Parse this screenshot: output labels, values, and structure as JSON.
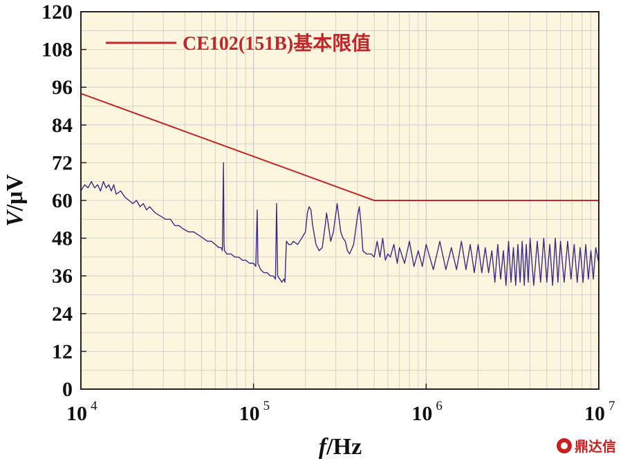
{
  "colors": {
    "plot_background": "#fbf6dd",
    "grid": "#c8c8c8",
    "limit_line": "#c0262a",
    "measured_line": "#3a2a86",
    "watermark": "#c81e1e"
  },
  "watermark": {
    "text": "鼎达信",
    "icon": "watermark-logo-icon"
  },
  "chart_data": {
    "type": "line",
    "title": "",
    "xlabel_italic": "f",
    "xlabel_unit": "/Hz",
    "ylabel_italic": "V",
    "ylabel_unit": "/μV",
    "xscale": "log",
    "xlim": [
      10000,
      10000000
    ],
    "ylim": [
      0,
      120
    ],
    "grid": true,
    "legend_placement": "top-left",
    "y_ticks": [
      "0",
      "12",
      "24",
      "36",
      "48",
      "60",
      "72",
      "84",
      "96",
      "108",
      "120"
    ],
    "x_ticks": [
      {
        "value": 10000,
        "base": "10",
        "exp": "4"
      },
      {
        "value": 100000,
        "base": "10",
        "exp": "5"
      },
      {
        "value": 1000000,
        "base": "10",
        "exp": "6"
      },
      {
        "value": 10000000,
        "base": "10",
        "exp": "7"
      }
    ],
    "series": [
      {
        "name": "CE102(151B)基本限值",
        "style": "limit",
        "points": [
          [
            10000,
            94
          ],
          [
            500000,
            60
          ],
          [
            10000000,
            60
          ]
        ]
      },
      {
        "style": "measured",
        "points": [
          [
            10000,
            63
          ],
          [
            10500,
            65
          ],
          [
            11000,
            64
          ],
          [
            11500,
            66
          ],
          [
            12000,
            64
          ],
          [
            12500,
            65
          ],
          [
            13000,
            63
          ],
          [
            13500,
            66
          ],
          [
            14000,
            64
          ],
          [
            14500,
            65
          ],
          [
            15000,
            63
          ],
          [
            15500,
            65
          ],
          [
            16000,
            62
          ],
          [
            17000,
            63
          ],
          [
            18000,
            61
          ],
          [
            19000,
            60
          ],
          [
            20000,
            59
          ],
          [
            21000,
            60
          ],
          [
            22000,
            58
          ],
          [
            23000,
            59
          ],
          [
            24000,
            57
          ],
          [
            25000,
            58
          ],
          [
            27000,
            56
          ],
          [
            29000,
            55
          ],
          [
            31000,
            54
          ],
          [
            33000,
            54
          ],
          [
            35000,
            52
          ],
          [
            37000,
            52
          ],
          [
            39000,
            51
          ],
          [
            42000,
            50
          ],
          [
            45000,
            50
          ],
          [
            48000,
            49
          ],
          [
            51000,
            48
          ],
          [
            54000,
            47
          ],
          [
            57000,
            47
          ],
          [
            60000,
            46
          ],
          [
            63000,
            45
          ],
          [
            65000,
            45
          ],
          [
            66000,
            44
          ],
          [
            67000,
            72
          ],
          [
            67500,
            46
          ],
          [
            68000,
            44
          ],
          [
            70000,
            43
          ],
          [
            74000,
            43
          ],
          [
            78000,
            42
          ],
          [
            82000,
            42
          ],
          [
            86000,
            41
          ],
          [
            90000,
            41
          ],
          [
            95000,
            40
          ],
          [
            100000,
            40
          ],
          [
            103000,
            39
          ],
          [
            105000,
            57
          ],
          [
            106000,
            40
          ],
          [
            110000,
            38
          ],
          [
            115000,
            37
          ],
          [
            120000,
            37
          ],
          [
            125000,
            36
          ],
          [
            130000,
            36
          ],
          [
            134000,
            35
          ],
          [
            136000,
            59
          ],
          [
            138000,
            36
          ],
          [
            142000,
            35
          ],
          [
            146000,
            34
          ],
          [
            150000,
            35
          ],
          [
            152000,
            34
          ],
          [
            155000,
            47
          ],
          [
            160000,
            46
          ],
          [
            165000,
            46
          ],
          [
            170000,
            47
          ],
          [
            180000,
            46
          ],
          [
            190000,
            48
          ],
          [
            200000,
            50
          ],
          [
            205000,
            56
          ],
          [
            210000,
            58
          ],
          [
            215000,
            57
          ],
          [
            220000,
            52
          ],
          [
            230000,
            46
          ],
          [
            240000,
            44
          ],
          [
            250000,
            45
          ],
          [
            260000,
            52
          ],
          [
            265000,
            56
          ],
          [
            270000,
            53
          ],
          [
            280000,
            47
          ],
          [
            290000,
            50
          ],
          [
            300000,
            56
          ],
          [
            305000,
            59
          ],
          [
            310000,
            56
          ],
          [
            320000,
            50
          ],
          [
            330000,
            48
          ],
          [
            340000,
            47
          ],
          [
            350000,
            44
          ],
          [
            360000,
            43
          ],
          [
            380000,
            46
          ],
          [
            400000,
            55
          ],
          [
            410000,
            58
          ],
          [
            420000,
            52
          ],
          [
            430000,
            44
          ],
          [
            450000,
            43
          ],
          [
            480000,
            43
          ],
          [
            500000,
            42
          ],
          [
            520000,
            47
          ],
          [
            540000,
            42
          ],
          [
            560000,
            48
          ],
          [
            580000,
            41
          ],
          [
            600000,
            43
          ],
          [
            620000,
            42
          ],
          [
            650000,
            46
          ],
          [
            680000,
            40
          ],
          [
            700000,
            45
          ],
          [
            750000,
            40
          ],
          [
            800000,
            47
          ],
          [
            850000,
            39
          ],
          [
            900000,
            44
          ],
          [
            950000,
            39
          ],
          [
            1000000,
            46
          ],
          [
            1100000,
            38
          ],
          [
            1200000,
            47
          ],
          [
            1300000,
            38
          ],
          [
            1400000,
            45
          ],
          [
            1500000,
            38
          ],
          [
            1600000,
            47
          ],
          [
            1700000,
            38
          ],
          [
            1800000,
            46
          ],
          [
            1900000,
            37
          ],
          [
            2000000,
            46
          ],
          [
            2100000,
            37
          ],
          [
            2200000,
            45
          ],
          [
            2300000,
            37
          ],
          [
            2400000,
            44
          ],
          [
            2500000,
            34
          ],
          [
            2600000,
            46
          ],
          [
            2700000,
            35
          ],
          [
            2800000,
            44
          ],
          [
            2900000,
            33
          ],
          [
            3000000,
            47
          ],
          [
            3100000,
            34
          ],
          [
            3200000,
            45
          ],
          [
            3300000,
            33
          ],
          [
            3400000,
            46
          ],
          [
            3500000,
            34
          ],
          [
            3600000,
            47
          ],
          [
            3700000,
            33
          ],
          [
            3800000,
            46
          ],
          [
            3900000,
            34
          ],
          [
            4000000,
            48
          ],
          [
            4200000,
            33
          ],
          [
            4400000,
            47
          ],
          [
            4600000,
            34
          ],
          [
            4800000,
            48
          ],
          [
            5000000,
            34
          ],
          [
            5200000,
            46
          ],
          [
            5400000,
            33
          ],
          [
            5600000,
            48
          ],
          [
            5800000,
            34
          ],
          [
            6000000,
            47
          ],
          [
            6300000,
            34
          ],
          [
            6600000,
            47
          ],
          [
            6900000,
            35
          ],
          [
            7200000,
            46
          ],
          [
            7500000,
            34
          ],
          [
            7800000,
            45
          ],
          [
            8100000,
            34
          ],
          [
            8400000,
            46
          ],
          [
            8700000,
            35
          ],
          [
            9000000,
            44
          ],
          [
            9300000,
            35
          ],
          [
            9600000,
            45
          ],
          [
            10000000,
            40
          ]
        ]
      }
    ]
  }
}
